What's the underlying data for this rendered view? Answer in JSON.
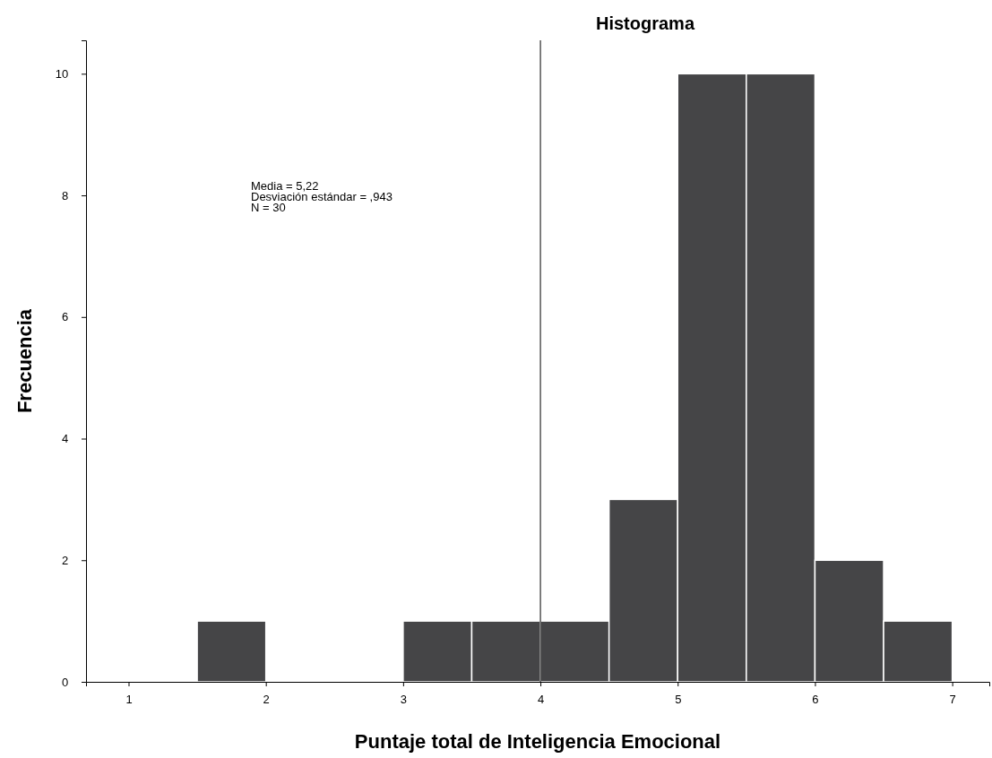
{
  "chart_data": {
    "type": "histogram",
    "title": "Histograma",
    "xlabel": "Puntaje total de Inteligencia Emocional",
    "ylabel": "Frecuencia",
    "bins": [
      1.5,
      2,
      2.5,
      3,
      3.5,
      4,
      4.5,
      5,
      5.5,
      6,
      6.5,
      7
    ],
    "values": [
      1,
      0,
      0,
      1,
      1,
      1,
      3,
      10,
      10,
      2,
      1
    ],
    "color": "#454547",
    "xlim": [
      0.69,
      7.27
    ],
    "xticks": [
      1,
      2,
      3,
      4,
      5,
      6,
      7
    ],
    "ylim": [
      0,
      10.55
    ],
    "yticks": [
      0,
      2,
      4,
      6,
      8,
      10
    ],
    "grid": false,
    "ref_lines": [
      {
        "axis": "x",
        "value": 4,
        "color": "#000000"
      }
    ],
    "annotations": [
      "Media = 5,22",
      "Desviación estándar = ,943",
      "N = 30"
    ]
  }
}
